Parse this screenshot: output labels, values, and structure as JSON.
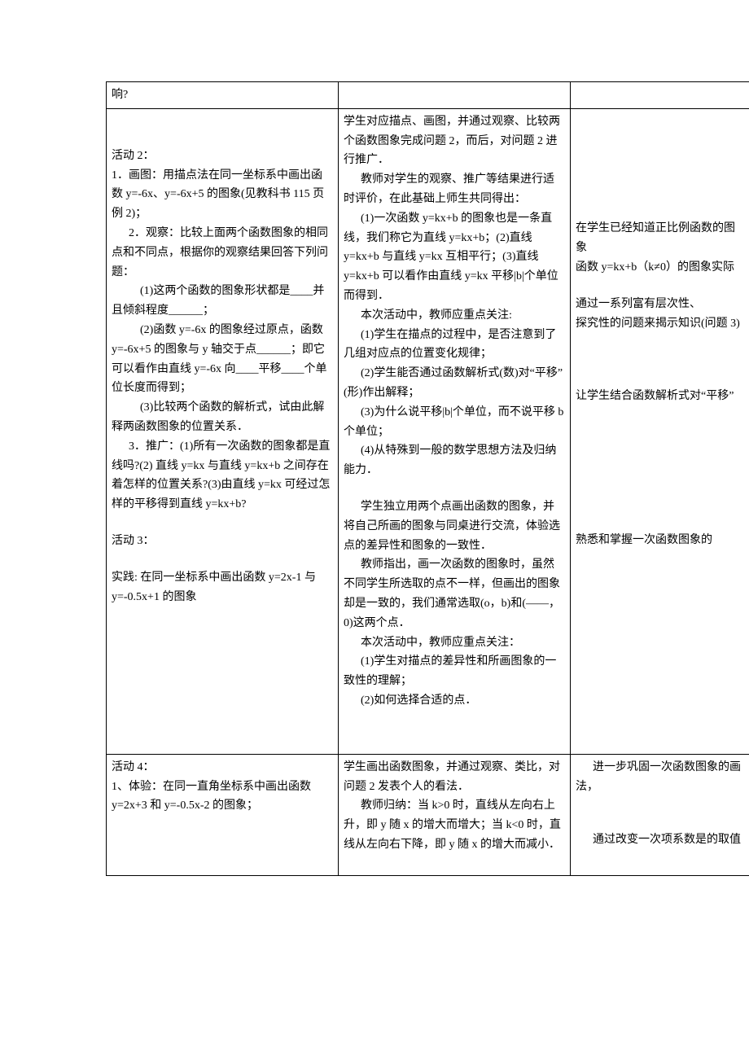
{
  "row0": {
    "c1": "响?",
    "c2": "",
    "c3": ""
  },
  "row1": {
    "c1": {
      "a2_head": "活动 2：",
      "a2_1": "1．画图：用描点法在同一坐标系中画出函数 y=-6x、y=-6x+5 的图象(见教科书 115 页例 2)；",
      "a2_2": "2．观察：比较上面两个函数图象的相同点和不同点，根据你的观察结果回答下列问题：",
      "a2_2_1": "(1)这两个函数的图象形状都是____并且倾斜程度______；",
      "a2_2_2": "(2)函数 y=-6x 的图象经过原点，函数 y=-6x+5 的图象与 y 轴交于点______；即它可以看作由直线 y=-6x 向____平移____个单位长度而得到；",
      "a2_2_3": "(3)比较两个函数的解析式，试由此解释两函数图象的位置关系．",
      "a2_3": "3．推广：(1)所有一次函数的图象都是直线吗?(2) 直线 y=kx 与直线 y=kx+b 之间存在着怎样的位置关系?(3)由直线 y=kx 可经过怎样的平移得到直线 y=kx+b?",
      "a3_head": "活动 3：",
      "a3_1": "实践: 在同一坐标系中画出函数 y=2x-1 与 y=-0.5x+1 的图象"
    },
    "c2": {
      "p1": "学生对应描点、画图，并通过观察、比较两个函数图象完成问题 2，而后，对问题 2 进行推广．",
      "p2": "教师对学生的观察、推广等结果进行适时评价，在此基础上师生共同得出：",
      "p3": "(1)一次函数 y=kx+b 的图象也是一条直线，我们称它为直线 y=kx+b；(2)直线 y=kx+b 与直线 y=kx 互相平行；(3)直线 y=kx+b 可以看作由直线 y=kx 平移|b|个单位而得到．",
      "p4": "本次活动中，教师应重点关注:",
      "p5": "(1)学生在描点的过程中，是否注意到了几组对应点的位置变化规律；",
      "p6": "(2)学生能否通过函数解析式(数)对“平移”   (形)作出解释；",
      "p7": "(3)为什么说平移|b|个单位，而不说平移 b 个单位；",
      "p8": "(4)从特殊到一般的数学思想方法及归纳能力．",
      "p9": "学生独立用两个点画出函数的图象，并将自己所画的图象与同桌进行交流，体验选点的差异性和图象的一致性．",
      "p10": "教师指出，画一次函数的图象时，虽然不同学生所选取的点不一样，但画出的图象却是一致的，我们通常选取(o，b)和(——，0)这两个点．",
      "p11": "本次活动中，教师应重点关注：",
      "p12": "(1)学生对描点的差异性和所画图象的一致性的理解；",
      "p13": "(2)如何选择合适的点．"
    },
    "c3": {
      "p1": "在学生已经知道正比例函数的图象",
      "p2": "函数 y=kx+b（k≠0）的图象实际",
      "p3": "通过一系列富有层次性、",
      "p4": "探究性的问题来揭示知识(问题 3)",
      "p5": "让学生结合函数解析式对“平移”",
      "p6": "熟悉和掌握一次函数图象的"
    }
  },
  "row2": {
    "c1": {
      "a4_head": "活动 4：",
      "a4_1": "1、体验：在同一直角坐标系中画出函数 y=2x+3 和 y=-0.5x-2 的图象；"
    },
    "c2": {
      "p1": "学生画出函数图象，并通过观察、类比，对问题 2 发表个人的看法．",
      "p2": "教师归纳：当 k>0 时，直线从左向右上升，即 y 随 x 的增大而增大；当 k<0 时，直线从左向右下降，即 y 随 x 的增大而减小．"
    },
    "c3": {
      "p1": "进一步巩固一次函数图象的画法，",
      "p2": "通过改变一次项系数是的取值"
    }
  }
}
